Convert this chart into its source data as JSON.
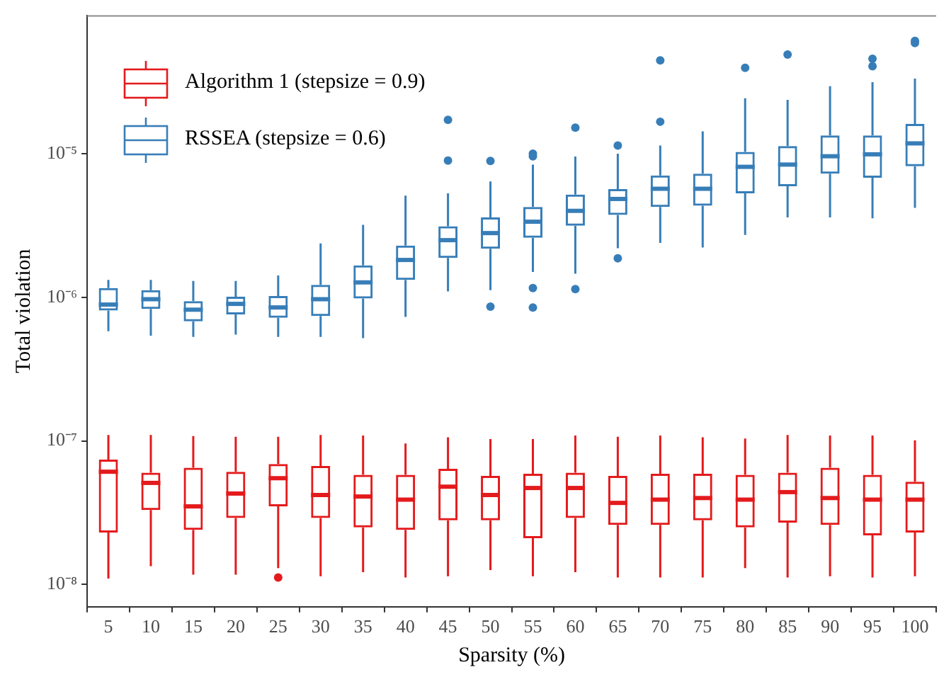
{
  "chart_data": {
    "type": "box",
    "xlabel": "Sparsity (%)",
    "ylabel": "Total violation",
    "log": "y",
    "legend": "top left",
    "categories": [
      "5",
      "10",
      "15",
      "20",
      "25",
      "30",
      "35",
      "40",
      "45",
      "50",
      "55",
      "60",
      "65",
      "70",
      "75",
      "80",
      "85",
      "90",
      "95",
      "100"
    ],
    "ylim": [
      7.2e-09,
      9.2e-05
    ],
    "yticks": [
      {
        "value": 1e-08,
        "label": "10⁻⁸"
      },
      {
        "value": 1e-07,
        "label": "10⁻⁷"
      },
      {
        "value": 1e-06,
        "label": "10⁻⁶"
      },
      {
        "value": 1e-05,
        "label": "10⁻⁵"
      }
    ],
    "series": [
      {
        "name": "Algorithm 1 (stepsize = 0.9)",
        "color": "#e41a1c",
        "boxes": [
          {
            "low": 1.1e-08,
            "q1": 2.3e-08,
            "median": 6.1e-08,
            "q3": 7.4e-08,
            "high": 1.1e-07
          },
          {
            "low": 1.34e-08,
            "q1": 3.3e-08,
            "median": 5.1e-08,
            "q3": 6e-08,
            "high": 1.1e-07
          },
          {
            "low": 1.17e-08,
            "q1": 2.4e-08,
            "median": 3.5e-08,
            "q3": 6.5e-08,
            "high": 1.08e-07
          },
          {
            "low": 1.17e-08,
            "q1": 2.9e-08,
            "median": 4.3e-08,
            "q3": 6.1e-08,
            "high": 1.07e-07
          },
          {
            "low": 1.3e-08,
            "q1": 3.5e-08,
            "median": 5.5e-08,
            "q3": 6.9e-08,
            "high": 1.07e-07,
            "outliers": [
              1.12e-08
            ]
          },
          {
            "low": 1.14e-08,
            "q1": 2.9e-08,
            "median": 4.2e-08,
            "q3": 6.7e-08,
            "high": 1.1e-07
          },
          {
            "low": 1.22e-08,
            "q1": 2.5e-08,
            "median": 4.1e-08,
            "q3": 5.8e-08,
            "high": 1.09e-07
          },
          {
            "low": 1.12e-08,
            "q1": 2.4e-08,
            "median": 3.9e-08,
            "q3": 5.8e-08,
            "high": 9.6e-08
          },
          {
            "low": 1.14e-08,
            "q1": 2.8e-08,
            "median": 4.8e-08,
            "q3": 6.4e-08,
            "high": 1.06e-07
          },
          {
            "low": 1.26e-08,
            "q1": 2.8e-08,
            "median": 4.2e-08,
            "q3": 5.7e-08,
            "high": 1.03e-07
          },
          {
            "low": 1.14e-08,
            "q1": 2.1e-08,
            "median": 4.7e-08,
            "q3": 5.9e-08,
            "high": 1.03e-07
          },
          {
            "low": 1.22e-08,
            "q1": 2.9e-08,
            "median": 4.7e-08,
            "q3": 6e-08,
            "high": 1.09e-07
          },
          {
            "low": 1.12e-08,
            "q1": 2.6e-08,
            "median": 3.7e-08,
            "q3": 5.7e-08,
            "high": 1.07e-07
          },
          {
            "low": 1.12e-08,
            "q1": 2.6e-08,
            "median": 3.9e-08,
            "q3": 5.9e-08,
            "high": 1.09e-07
          },
          {
            "low": 1.12e-08,
            "q1": 2.8e-08,
            "median": 4e-08,
            "q3": 5.9e-08,
            "high": 1.06e-07
          },
          {
            "low": 1.3e-08,
            "q1": 2.5e-08,
            "median": 3.9e-08,
            "q3": 5.8e-08,
            "high": 1.04e-07
          },
          {
            "low": 1.12e-08,
            "q1": 2.7e-08,
            "median": 4.4e-08,
            "q3": 6e-08,
            "high": 1.1e-07
          },
          {
            "low": 1.14e-08,
            "q1": 2.6e-08,
            "median": 4e-08,
            "q3": 6.5e-08,
            "high": 1.09e-07
          },
          {
            "low": 1.12e-08,
            "q1": 2.2e-08,
            "median": 3.9e-08,
            "q3": 5.8e-08,
            "high": 1.09e-07
          },
          {
            "low": 1.14e-08,
            "q1": 2.3e-08,
            "median": 3.9e-08,
            "q3": 5.2e-08,
            "high": 1.01e-07
          }
        ]
      },
      {
        "name": "RSSEA (stepsize = 0.6)",
        "color": "#377eb8",
        "boxes": [
          {
            "low": 5.8e-07,
            "q1": 8.1e-07,
            "median": 8.9e-07,
            "q3": 1.16e-06,
            "high": 1.32e-06
          },
          {
            "low": 5.4e-07,
            "q1": 8.3e-07,
            "median": 9.7e-07,
            "q3": 1.12e-06,
            "high": 1.32e-06
          },
          {
            "low": 5.3e-07,
            "q1": 6.8e-07,
            "median": 8.2e-07,
            "q3": 9.4e-07,
            "high": 1.3e-06
          },
          {
            "low": 5.5e-07,
            "q1": 7.6e-07,
            "median": 9e-07,
            "q3": 1.01e-06,
            "high": 1.3e-06
          },
          {
            "low": 5.3e-07,
            "q1": 7.2e-07,
            "median": 8.5e-07,
            "q3": 1.02e-06,
            "high": 1.42e-06
          },
          {
            "low": 5.3e-07,
            "q1": 7.4e-07,
            "median": 9.7e-07,
            "q3": 1.22e-06,
            "high": 2.37e-06
          },
          {
            "low": 5.2e-07,
            "q1": 9.8e-07,
            "median": 1.27e-06,
            "q3": 1.67e-06,
            "high": 3.2e-06
          },
          {
            "low": 7.3e-07,
            "q1": 1.32e-06,
            "median": 1.82e-06,
            "q3": 2.29e-06,
            "high": 5.1e-06
          },
          {
            "low": 1.1e-06,
            "q1": 1.88e-06,
            "median": 2.5e-06,
            "q3": 3.12e-06,
            "high": 5.3e-06,
            "outliers": [
              1.72e-05,
              8.96e-06
            ]
          },
          {
            "low": 1.12e-06,
            "q1": 2.18e-06,
            "median": 2.8e-06,
            "q3": 3.6e-06,
            "high": 6.4e-06,
            "outliers": [
              8.9e-06,
              8.6e-07
            ]
          },
          {
            "low": 1.5e-06,
            "q1": 2.6e-06,
            "median": 3.36e-06,
            "q3": 4.26e-06,
            "high": 8.4e-06,
            "outliers": [
              1e-05,
              9.6e-06,
              1.16e-06,
              8.5e-07
            ]
          },
          {
            "low": 1.46e-06,
            "q1": 3.15e-06,
            "median": 4e-06,
            "q3": 5.2e-06,
            "high": 9.55e-06,
            "outliers": [
              1.52e-05,
              1.14e-06
            ]
          },
          {
            "low": 2.2e-06,
            "q1": 3.75e-06,
            "median": 4.84e-06,
            "q3": 5.67e-06,
            "high": 1e-05,
            "outliers": [
              1.14e-05,
              1.87e-06
            ]
          },
          {
            "low": 2.39e-06,
            "q1": 4.26e-06,
            "median": 5.7e-06,
            "q3": 7.06e-06,
            "high": 1.14e-05,
            "outliers": [
              4.47e-05,
              1.67e-05
            ]
          },
          {
            "low": 2.22e-06,
            "q1": 4.34e-06,
            "median": 5.7e-06,
            "q3": 7.26e-06,
            "high": 1.43e-05
          },
          {
            "low": 2.72e-06,
            "q1": 5.3e-06,
            "median": 8.1e-06,
            "q3": 1.03e-05,
            "high": 2.43e-05,
            "outliers": [
              3.96e-05
            ]
          },
          {
            "low": 3.6e-06,
            "q1": 5.93e-06,
            "median": 8.4e-06,
            "q3": 1.13e-05,
            "high": 2.37e-05,
            "outliers": [
              4.9e-05
            ]
          },
          {
            "low": 3.6e-06,
            "q1": 7.26e-06,
            "median": 9.6e-06,
            "q3": 1.34e-05,
            "high": 2.95e-05
          },
          {
            "low": 3.55e-06,
            "q1": 6.8e-06,
            "median": 9.9e-06,
            "q3": 1.34e-05,
            "high": 3.15e-05,
            "outliers": [
              4.58e-05,
              4.07e-05
            ]
          },
          {
            "low": 4.2e-06,
            "q1": 8.17e-06,
            "median": 1.18e-05,
            "q3": 1.61e-05,
            "high": 3.33e-05,
            "outliers": [
              6.1e-05,
              5.9e-05
            ]
          }
        ]
      }
    ]
  }
}
